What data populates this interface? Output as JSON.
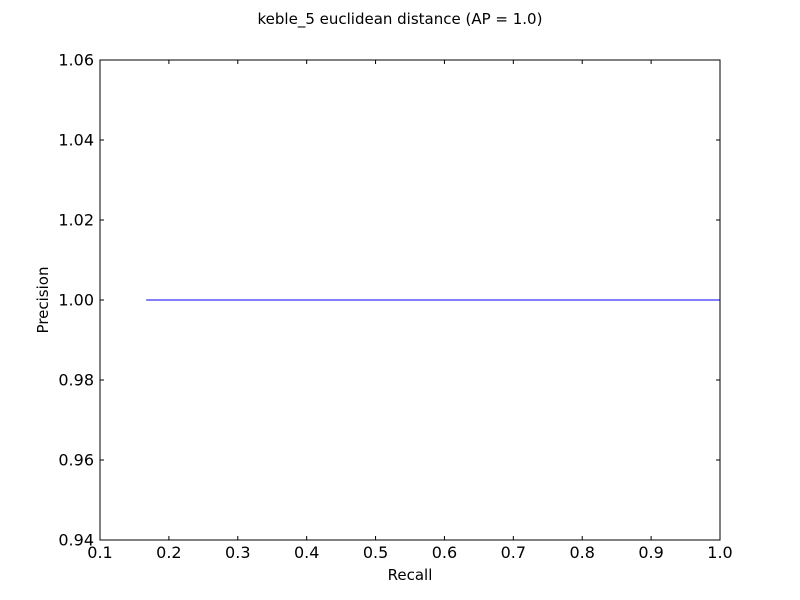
{
  "chart_data": {
    "type": "line",
    "title": "keble_5 euclidean distance  (AP = 1.0)",
    "xlabel": "Recall",
    "ylabel": "Precision",
    "xlim": [
      0.1,
      1.0
    ],
    "ylim": [
      0.94,
      1.06
    ],
    "xticks": [
      0.1,
      0.2,
      0.3,
      0.4,
      0.5,
      0.6,
      0.7,
      0.8,
      0.9,
      1.0
    ],
    "xtick_labels": [
      "0.1",
      "0.2",
      "0.3",
      "0.4",
      "0.5",
      "0.6",
      "0.7",
      "0.8",
      "0.9",
      "1.0"
    ],
    "yticks": [
      0.94,
      0.96,
      0.98,
      1.0,
      1.02,
      1.04,
      1.06
    ],
    "ytick_labels": [
      "0.94",
      "0.96",
      "0.98",
      "1.00",
      "1.02",
      "1.04",
      "1.06"
    ],
    "grid": false,
    "series": [
      {
        "color": "#0000ff",
        "x": [
          0.167,
          1.0
        ],
        "y": [
          1.0,
          1.0
        ]
      }
    ]
  }
}
